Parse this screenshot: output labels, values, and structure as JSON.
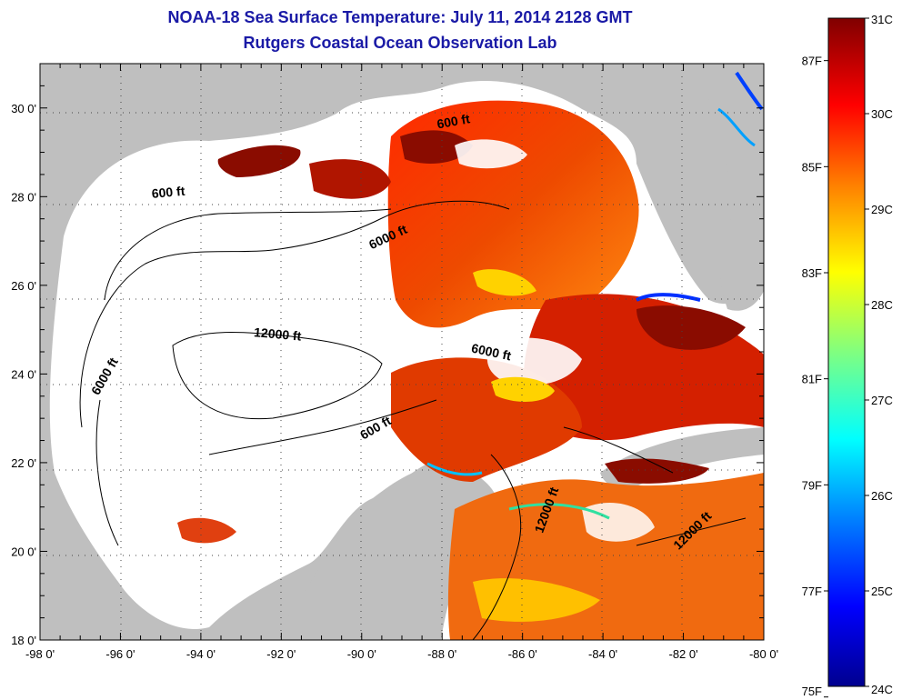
{
  "title": "NOAA-18 Sea Surface Temperature:  July 11, 2014 2128 GMT",
  "subtitle": "Rutgers Coastal Ocean Observation Lab",
  "map": {
    "lon_range": [
      -98,
      -80
    ],
    "lat_range": [
      18,
      31
    ],
    "lon_ticks": [
      "-98 0'",
      "-96 0'",
      "-94 0'",
      "-92 0'",
      "-90 0'",
      "-88 0'",
      "-86 0'",
      "-84 0'",
      "-82 0'",
      "-80 0'"
    ],
    "lat_ticks": [
      "18 0'",
      "20 0'",
      "22 0'",
      "24 0'",
      "26 0'",
      "28 0'",
      "30 0'"
    ],
    "gridlines": "dotted",
    "land_color": "#bfbfbf",
    "cloud_color": "#ffffff"
  },
  "contour_labels": [
    {
      "text": "600 ft",
      "lon": -94.8,
      "lat": 28.0
    },
    {
      "text": "600 ft",
      "lon": -87.7,
      "lat": 29.6
    },
    {
      "text": "6000 ft",
      "lon": -89.3,
      "lat": 27.0
    },
    {
      "text": "12000 ft",
      "lon": -92.1,
      "lat": 24.8
    },
    {
      "text": "6000 ft",
      "lon": -86.8,
      "lat": 24.4
    },
    {
      "text": "6000 ft",
      "lon": -96.3,
      "lat": 23.9
    },
    {
      "text": "600 ft",
      "lon": -89.6,
      "lat": 22.7
    },
    {
      "text": "12000 ft",
      "lon": -85.3,
      "lat": 20.9
    },
    {
      "text": "12000 ft",
      "lon": -81.7,
      "lat": 20.4
    }
  ],
  "colorbar": {
    "celsius_labels": [
      "31C",
      "30C",
      "29C",
      "28C",
      "27C",
      "26C",
      "25C",
      "24C"
    ],
    "fahrenheit_labels": [
      "87F",
      "85F",
      "83F",
      "81F",
      "79F",
      "77F",
      "75F"
    ],
    "colors": [
      "#00008f",
      "#0000ff",
      "#0080ff",
      "#00ffff",
      "#80ff80",
      "#ffff00",
      "#ff8000",
      "#ff0000",
      "#800000"
    ]
  }
}
